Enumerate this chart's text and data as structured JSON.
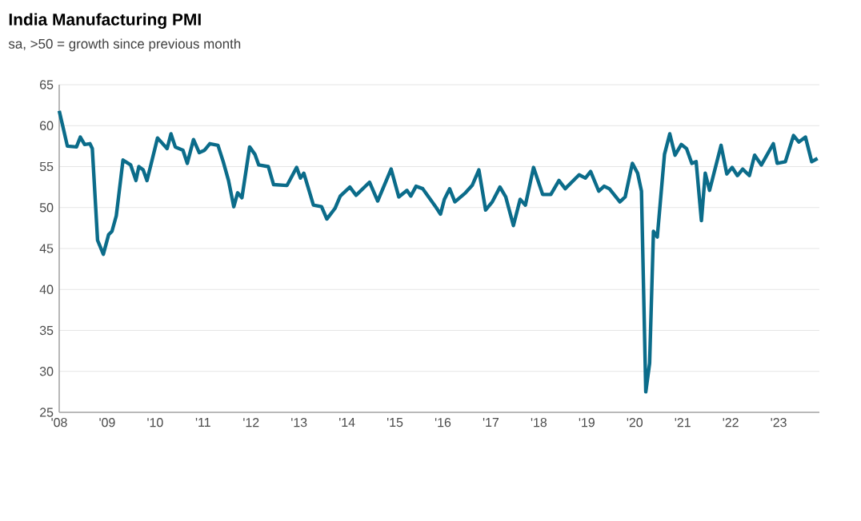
{
  "chart_data": {
    "type": "line",
    "title": "India Manufacturing PMI",
    "subtitle": "sa, >50 = growth since previous month",
    "x": [
      2008.0,
      2008.08,
      2008.17,
      2008.36,
      2008.44,
      2008.53,
      2008.64,
      2008.69,
      2008.8,
      2008.92,
      2009.03,
      2009.1,
      2009.19,
      2009.33,
      2009.49,
      2009.6,
      2009.66,
      2009.75,
      2009.83,
      2010.05,
      2010.25,
      2010.33,
      2010.42,
      2010.58,
      2010.67,
      2010.8,
      2010.92,
      2011.03,
      2011.14,
      2011.31,
      2011.42,
      2011.53,
      2011.64,
      2011.72,
      2011.81,
      2011.97,
      2012.08,
      2012.16,
      2012.36,
      2012.47,
      2012.75,
      2012.95,
      2013.03,
      2013.1,
      2013.3,
      2013.47,
      2013.58,
      2013.75,
      2013.86,
      2014.06,
      2014.19,
      2014.47,
      2014.64,
      2014.92,
      2015.08,
      2015.25,
      2015.33,
      2015.44,
      2015.58,
      2015.86,
      2015.95,
      2016.03,
      2016.14,
      2016.25,
      2016.47,
      2016.61,
      2016.75,
      2016.89,
      2017.03,
      2017.19,
      2017.31,
      2017.47,
      2017.61,
      2017.72,
      2017.89,
      2018.08,
      2018.25,
      2018.42,
      2018.55,
      2018.84,
      2018.97,
      2019.08,
      2019.25,
      2019.36,
      2019.47,
      2019.69,
      2019.8,
      2019.95,
      2020.06,
      2020.14,
      2020.23,
      2020.31,
      2020.39,
      2020.47,
      2020.62,
      2020.73,
      2020.84,
      2020.97,
      2021.08,
      2021.19,
      2021.28,
      2021.39,
      2021.47,
      2021.56,
      2021.8,
      2021.92,
      2022.03,
      2022.14,
      2022.25,
      2022.39,
      2022.5,
      2022.64,
      2022.89,
      2022.97,
      2023.14,
      2023.31,
      2023.42,
      2023.56,
      2023.69,
      2023.81
    ],
    "series": [
      {
        "color": "#0b6c8a",
        "values": [
          61.8,
          59.8,
          57.5,
          57.4,
          58.6,
          57.7,
          57.8,
          57.2,
          46,
          44.3,
          46.7,
          47.1,
          49,
          55.8,
          55.2,
          53.3,
          55,
          54.6,
          53.3,
          58.5,
          57.2,
          59,
          57.4,
          57,
          55.4,
          58.3,
          56.7,
          57,
          57.8,
          57.6,
          55.6,
          53.3,
          50.1,
          51.8,
          51.2,
          57.4,
          56.5,
          55.2,
          55,
          52.8,
          52.7,
          54.9,
          53.6,
          54.2,
          50.3,
          50.1,
          48.6,
          49.9,
          51.4,
          52.5,
          51.5,
          53.1,
          50.8,
          54.7,
          51.3,
          52.1,
          51.4,
          52.6,
          52.3,
          50,
          49.2,
          51,
          52.3,
          50.7,
          51.8,
          52.7,
          54.6,
          49.7,
          50.7,
          52.5,
          51.3,
          47.8,
          51,
          50.3,
          54.9,
          51.6,
          51.6,
          53.3,
          52.3,
          54,
          53.6,
          54.4,
          52,
          52.6,
          52.3,
          50.7,
          51.3,
          55.4,
          54.2,
          52,
          27.5,
          31,
          47.1,
          46.4,
          56.5,
          59,
          56.4,
          57.7,
          57.2,
          55.4,
          55.6,
          48.4,
          54.2,
          52.1,
          57.6,
          54.1,
          54.9,
          53.9,
          54.7,
          53.9,
          56.4,
          55.2,
          57.8,
          55.4,
          55.6,
          58.8,
          58,
          58.6,
          55.6,
          56
        ]
      }
    ],
    "xlim": [
      2008,
      2023.85
    ],
    "ylim": [
      25,
      65
    ],
    "xticks": [
      {
        "value": 2008,
        "label": "'08"
      },
      {
        "value": 2009,
        "label": "'09"
      },
      {
        "value": 2010,
        "label": "'10"
      },
      {
        "value": 2011,
        "label": "'11"
      },
      {
        "value": 2012,
        "label": "'12"
      },
      {
        "value": 2013,
        "label": "'13"
      },
      {
        "value": 2014,
        "label": "'14"
      },
      {
        "value": 2015,
        "label": "'15"
      },
      {
        "value": 2016,
        "label": "'16"
      },
      {
        "value": 2017,
        "label": "'17"
      },
      {
        "value": 2018,
        "label": "'18"
      },
      {
        "value": 2019,
        "label": "'19"
      },
      {
        "value": 2020,
        "label": "'20"
      },
      {
        "value": 2021,
        "label": "'21"
      },
      {
        "value": 2022,
        "label": "'22"
      },
      {
        "value": 2023,
        "label": "'23"
      }
    ],
    "yticks": [
      25,
      30,
      35,
      40,
      45,
      50,
      55,
      60,
      65
    ],
    "grid": "y"
  }
}
